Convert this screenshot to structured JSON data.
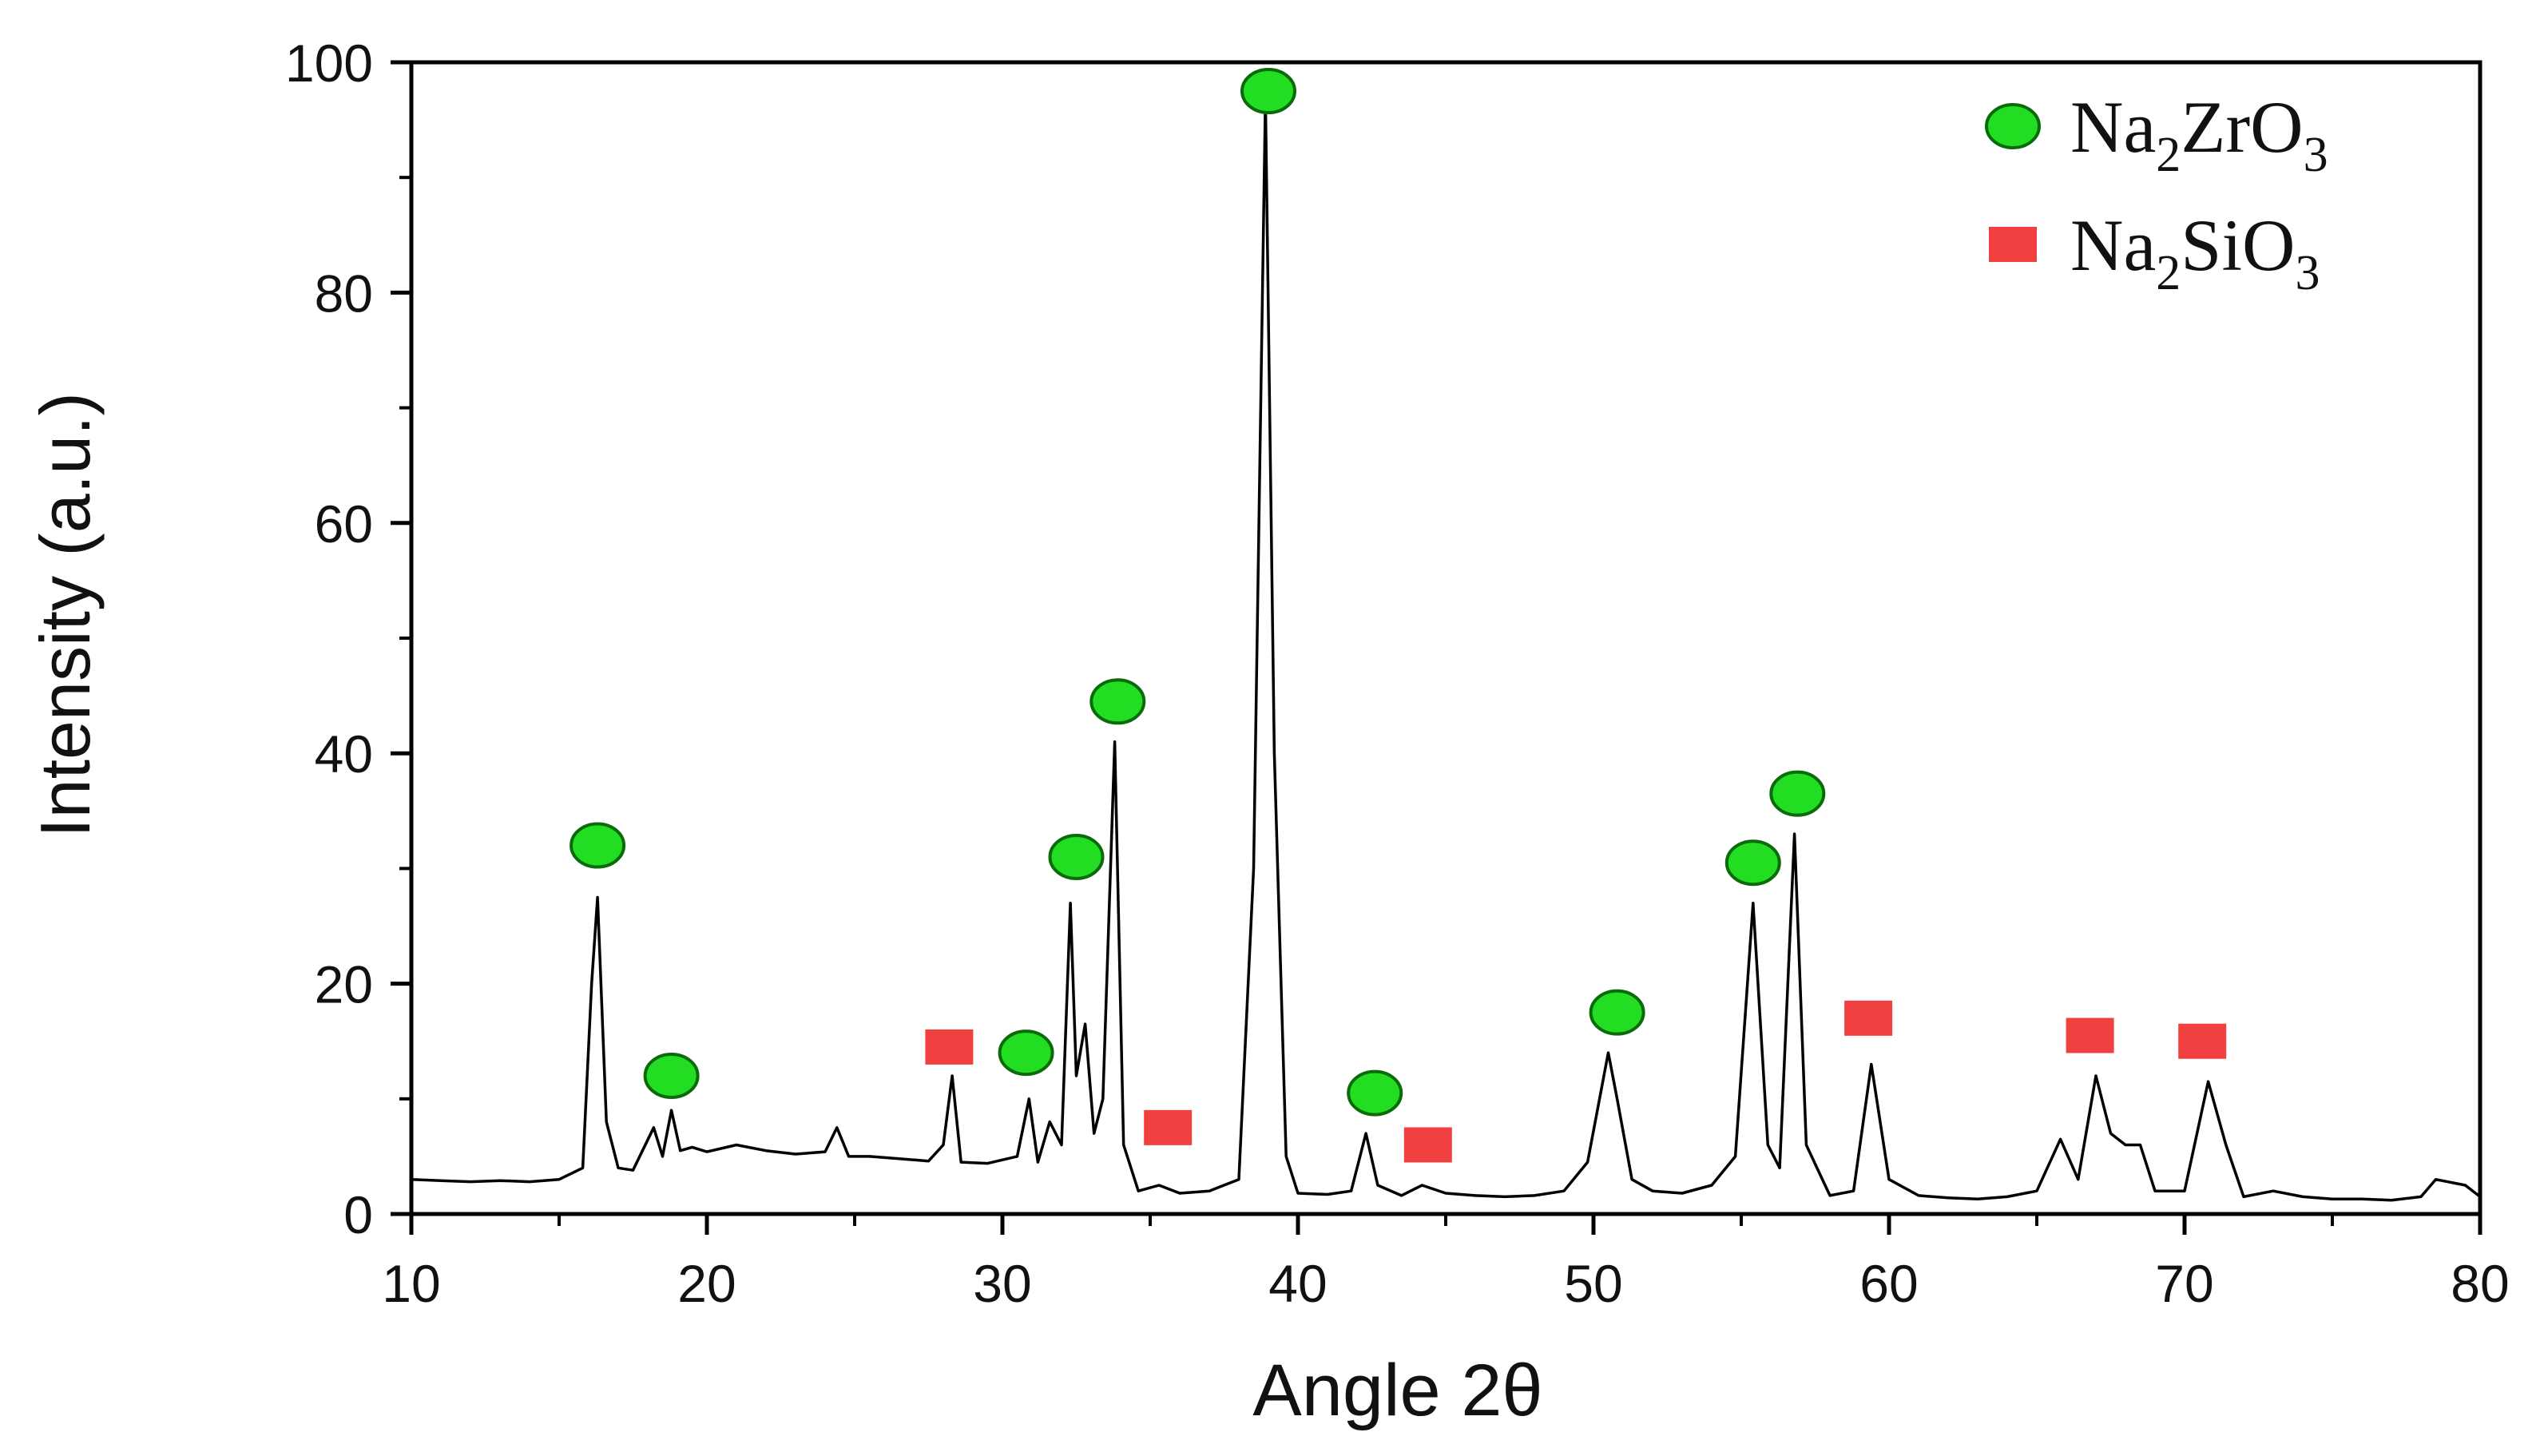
{
  "chart_data": {
    "type": "line",
    "xlabel": "Angle 2θ",
    "ylabel": "Intensity (a.u.)",
    "xlim": [
      10,
      80
    ],
    "ylim": [
      0,
      100
    ],
    "x_ticks": [
      "10",
      "20",
      "30",
      "40",
      "50",
      "60",
      "70",
      "80"
    ],
    "y_ticks": [
      "0",
      "20",
      "40",
      "60",
      "80",
      "100"
    ],
    "grid": false,
    "legend_position": "top-right",
    "legend": [
      {
        "label": "Na",
        "sub1": "2",
        "mid": "ZrO",
        "sub2": "3",
        "marker": "circle",
        "color": "#22dd22"
      },
      {
        "label": "Na",
        "sub1": "2",
        "mid": "SiO",
        "sub2": "3",
        "marker": "square",
        "color": "#f04040"
      }
    ],
    "series": [
      {
        "line_color": "#000000",
        "x": [
          10,
          11,
          12,
          13,
          14,
          15,
          15.8,
          16.1,
          16.3,
          16.6,
          17,
          17.5,
          18.2,
          18.5,
          18.8,
          19.1,
          19.5,
          20,
          21,
          22,
          23,
          24,
          24.4,
          24.8,
          25.5,
          26.5,
          27.5,
          28,
          28.3,
          28.6,
          29.5,
          30.5,
          30.9,
          31.2,
          31.6,
          32,
          32.3,
          32.5,
          32.8,
          33.1,
          33.4,
          33.8,
          34.1,
          34.6,
          35.3,
          36,
          37,
          38,
          38.5,
          38.9,
          39.2,
          39.6,
          40,
          41,
          41.8,
          42.3,
          42.7,
          43.5,
          44.2,
          45,
          46,
          47,
          48,
          49,
          49.8,
          50.5,
          50.8,
          51.3,
          52,
          53,
          54,
          54.8,
          55.4,
          55.9,
          56.3,
          56.8,
          57.2,
          58,
          58.8,
          59.4,
          60,
          61,
          62,
          63,
          64,
          65,
          65.8,
          66.4,
          67,
          67.5,
          68,
          68.5,
          69,
          70,
          70.8,
          71.4,
          72,
          73,
          74,
          75,
          76,
          77,
          78,
          78.5,
          79.5,
          80
        ],
        "y": [
          3,
          2.9,
          2.8,
          2.9,
          2.8,
          3,
          4,
          20,
          27.5,
          8,
          4,
          3.8,
          7.5,
          5,
          9,
          5.5,
          5.8,
          5.4,
          6,
          5.5,
          5.2,
          5.4,
          7.5,
          5,
          5,
          4.8,
          4.6,
          6,
          12,
          4.5,
          4.4,
          5,
          10,
          4.5,
          8,
          6,
          27,
          12,
          16.5,
          7,
          10,
          41,
          6,
          2,
          2.5,
          1.8,
          2,
          3,
          30,
          97,
          40,
          5,
          1.8,
          1.7,
          2,
          7,
          2.5,
          1.6,
          2.5,
          1.8,
          1.6,
          1.5,
          1.6,
          2,
          4.5,
          14,
          10,
          3,
          2,
          1.8,
          2.5,
          5,
          27,
          6,
          4,
          33,
          6,
          1.6,
          2,
          13,
          3,
          1.6,
          1.4,
          1.3,
          1.5,
          2,
          6.5,
          3,
          12,
          7,
          6,
          6,
          2,
          2,
          11.5,
          6,
          1.5,
          2,
          1.5,
          1.3,
          1.3,
          1.2,
          1.5,
          3,
          2.5,
          1.5
        ]
      }
    ],
    "markers": [
      {
        "shape": "circle",
        "x": 16.3,
        "y": 32
      },
      {
        "shape": "circle",
        "x": 18.8,
        "y": 12
      },
      {
        "shape": "circle",
        "x": 30.8,
        "y": 14
      },
      {
        "shape": "circle",
        "x": 32.5,
        "y": 31
      },
      {
        "shape": "circle",
        "x": 33.9,
        "y": 44.5
      },
      {
        "shape": "circle",
        "x": 39.0,
        "y": 97.5
      },
      {
        "shape": "circle",
        "x": 42.6,
        "y": 10.5
      },
      {
        "shape": "circle",
        "x": 50.8,
        "y": 17.5
      },
      {
        "shape": "circle",
        "x": 55.4,
        "y": 30.5
      },
      {
        "shape": "circle",
        "x": 56.9,
        "y": 36.5
      },
      {
        "shape": "square",
        "x": 28.2,
        "y": 14.5
      },
      {
        "shape": "square",
        "x": 35.6,
        "y": 7.5
      },
      {
        "shape": "square",
        "x": 44.4,
        "y": 6
      },
      {
        "shape": "square",
        "x": 59.3,
        "y": 17
      },
      {
        "shape": "square",
        "x": 66.8,
        "y": 15.5
      },
      {
        "shape": "square",
        "x": 70.6,
        "y": 15
      }
    ]
  }
}
